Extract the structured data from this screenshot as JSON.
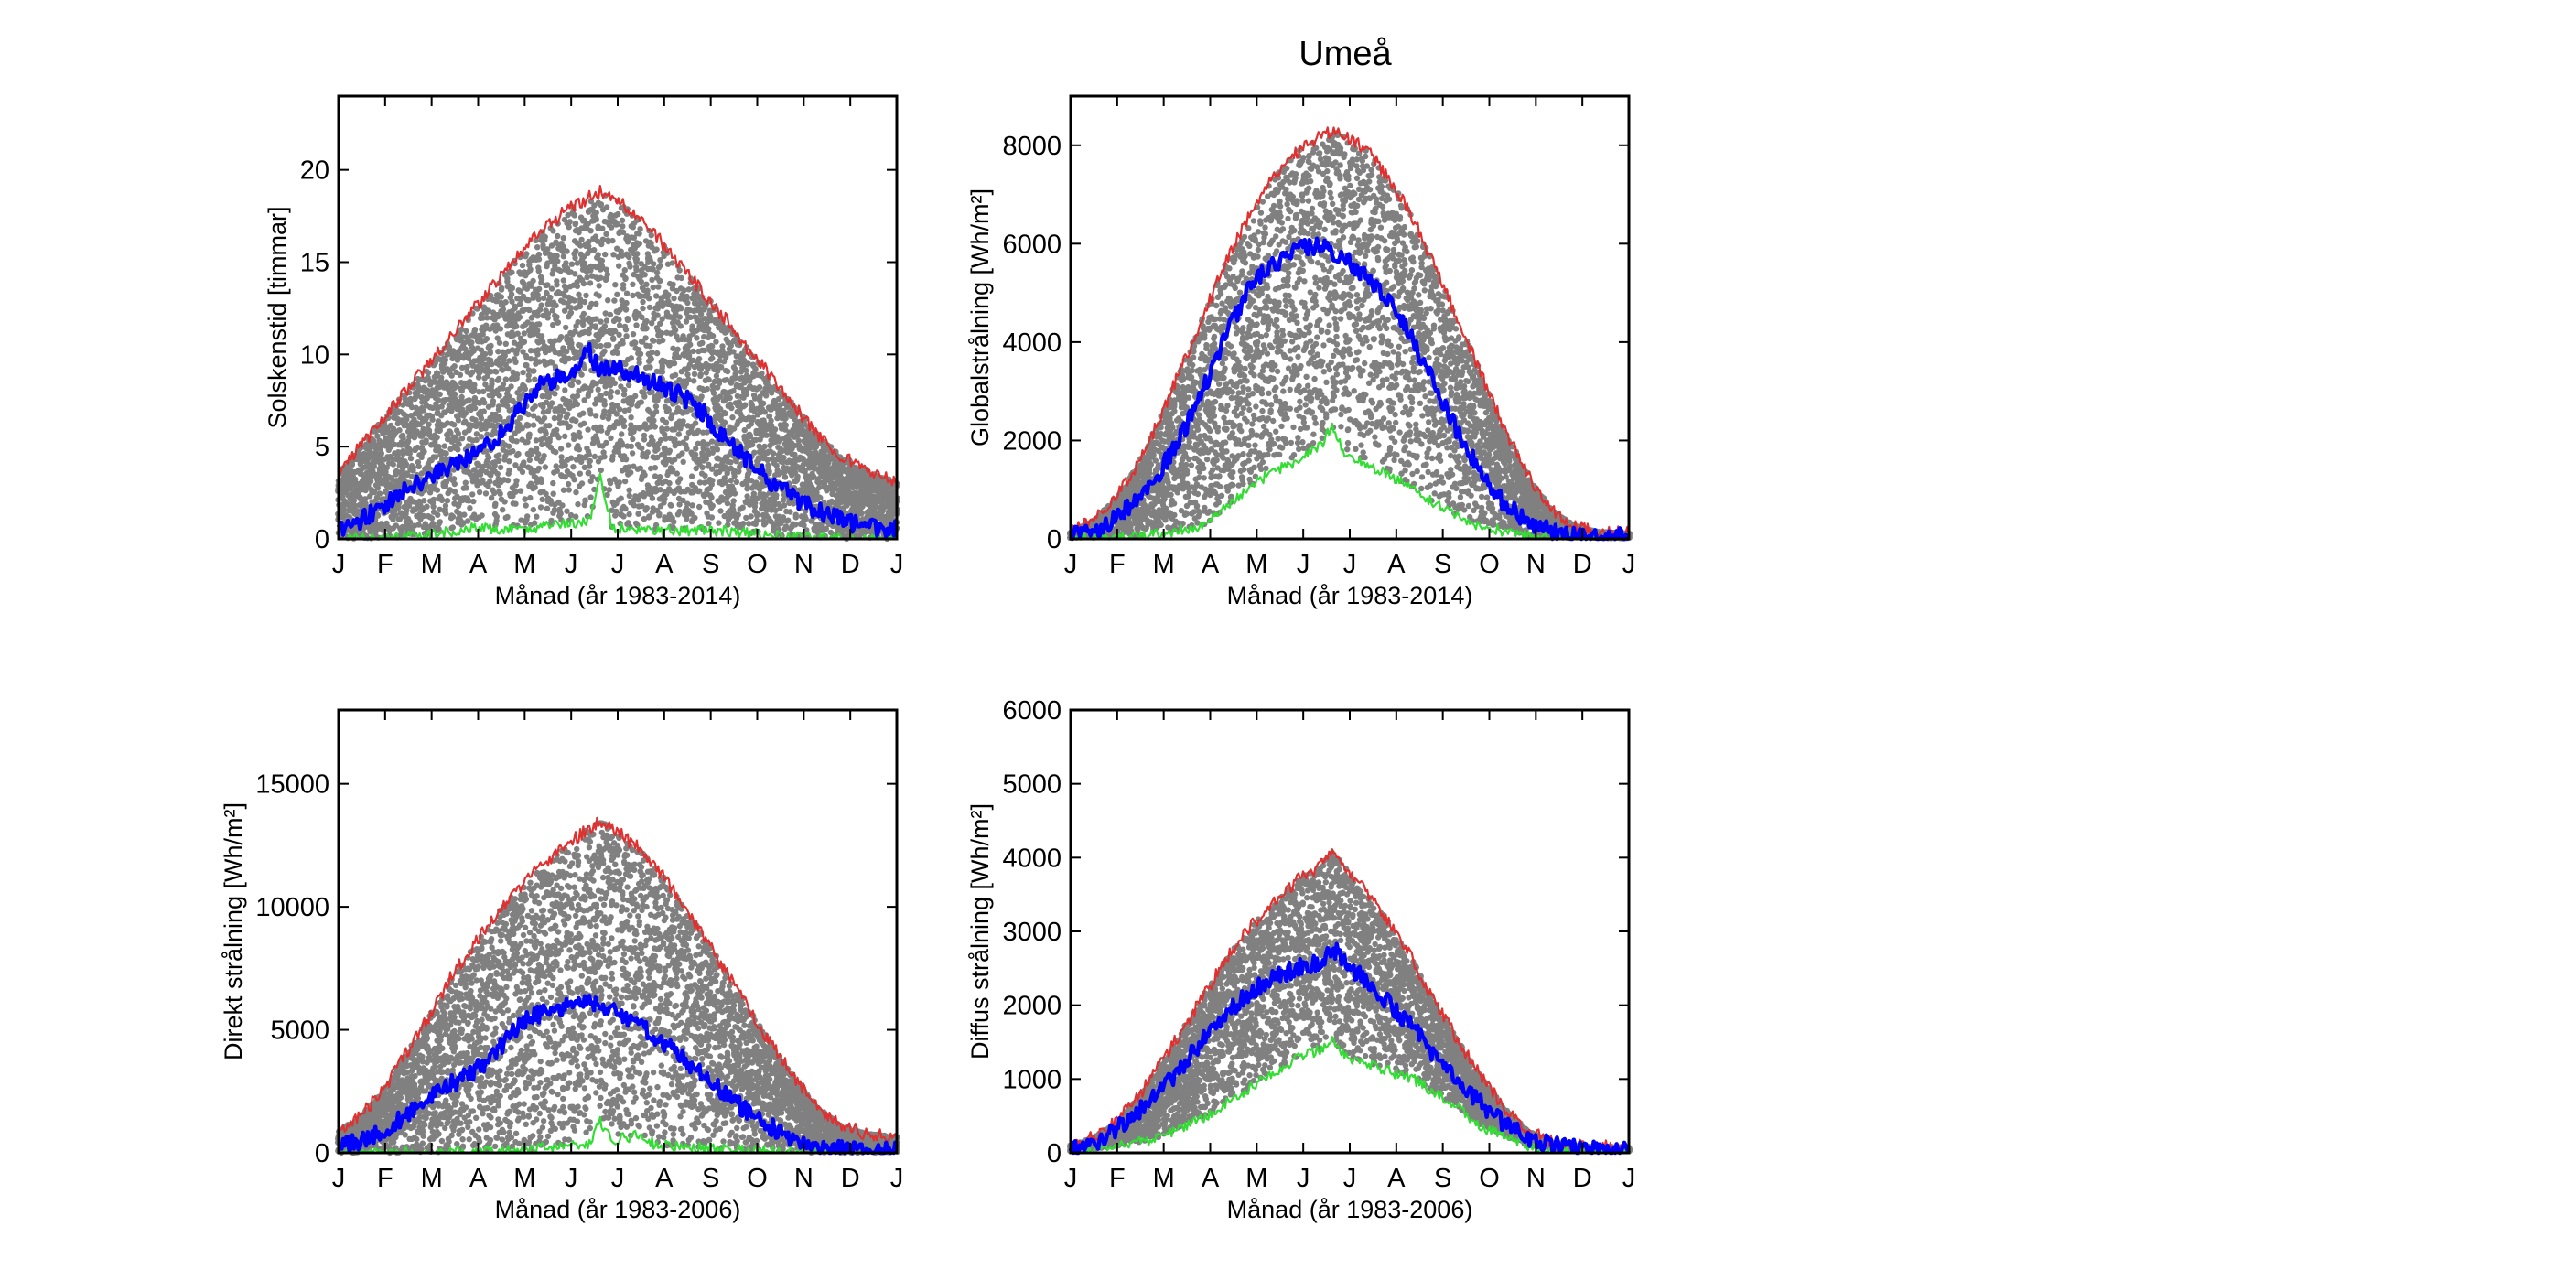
{
  "figure": {
    "title": "Umeå",
    "colors": {
      "scatter": "#808080",
      "max_line": "#e03030",
      "mean_line": "#0000ff",
      "min_line": "#33dd33",
      "axes": "#000000"
    }
  },
  "chart_data": [
    {
      "type": "scatter",
      "ylabel": "Solskenstid [timmar]",
      "xlabel": "Månad (år 1983-2014)",
      "ylim": [
        0,
        24
      ],
      "yticks": [
        0,
        5,
        10,
        15,
        20
      ],
      "xticks": [
        "J",
        "F",
        "M",
        "A",
        "M",
        "J",
        "J",
        "A",
        "S",
        "O",
        "N",
        "D",
        "J"
      ],
      "grid": false,
      "series": [
        {
          "role": "max",
          "color": "#e03030",
          "x": [
            1,
            15,
            30,
            45,
            60,
            75,
            90,
            105,
            120,
            135,
            150,
            165,
            172,
            180,
            195,
            210,
            225,
            240,
            255,
            270,
            285,
            300,
            315,
            330,
            345,
            360,
            366
          ],
          "y": [
            3.5,
            5,
            6.5,
            8,
            9.5,
            11,
            12.5,
            14,
            15.5,
            16.8,
            17.8,
            18.5,
            18.8,
            18.5,
            17.6,
            16.3,
            14.8,
            13.3,
            11.8,
            10.2,
            8.7,
            7.1,
            5.6,
            4.5,
            3.8,
            3.3,
            3.2
          ]
        },
        {
          "role": "mean",
          "color": "#0000ff",
          "x": [
            1,
            15,
            30,
            45,
            60,
            75,
            90,
            105,
            120,
            135,
            150,
            165,
            172,
            180,
            195,
            210,
            225,
            240,
            255,
            270,
            285,
            300,
            315,
            330,
            345,
            360,
            366
          ],
          "y": [
            0.6,
            1.0,
            1.8,
            2.6,
            3.4,
            4.0,
            4.6,
            5.5,
            7.0,
            8.5,
            8.8,
            10.2,
            9.0,
            9.3,
            9.0,
            8.3,
            7.8,
            6.8,
            5.3,
            4.2,
            3.0,
            2.2,
            1.5,
            1.0,
            0.7,
            0.6,
            0.6
          ]
        },
        {
          "role": "min",
          "color": "#33dd33",
          "x": [
            1,
            30,
            60,
            90,
            120,
            150,
            165,
            172,
            180,
            210,
            240,
            270,
            300,
            330,
            366
          ],
          "y": [
            0,
            0,
            0.2,
            0.6,
            0.5,
            0.8,
            1.0,
            3.5,
            0.6,
            0.4,
            0.5,
            0.3,
            0.1,
            0,
            0
          ]
        },
        {
          "role": "scatter",
          "color": "#808080",
          "envelope_min": "min",
          "envelope_max": "max"
        }
      ]
    },
    {
      "type": "scatter",
      "ylabel": "Globalstrålning [Wh/m²]",
      "xlabel": "Månad (år 1983-2014)",
      "ylim": [
        0,
        9000
      ],
      "yticks": [
        0,
        2000,
        4000,
        6000,
        8000
      ],
      "xticks": [
        "J",
        "F",
        "M",
        "A",
        "M",
        "J",
        "J",
        "A",
        "S",
        "O",
        "N",
        "D",
        "J"
      ],
      "grid": false,
      "series": [
        {
          "role": "max",
          "color": "#e03030",
          "x": [
            1,
            15,
            30,
            45,
            60,
            75,
            90,
            105,
            120,
            135,
            150,
            165,
            172,
            180,
            195,
            210,
            225,
            240,
            255,
            270,
            285,
            300,
            315,
            330,
            345,
            360,
            366
          ],
          "y": [
            150,
            350,
            800,
            1500,
            2500,
            3600,
            4700,
            5800,
            6700,
            7400,
            7900,
            8200,
            8300,
            8200,
            7900,
            7300,
            6500,
            5500,
            4400,
            3300,
            2200,
            1300,
            600,
            280,
            150,
            120,
            120
          ]
        },
        {
          "role": "mean",
          "color": "#0000ff",
          "x": [
            1,
            15,
            30,
            45,
            60,
            75,
            90,
            105,
            120,
            135,
            150,
            165,
            172,
            180,
            195,
            210,
            225,
            240,
            255,
            270,
            285,
            300,
            315,
            330,
            345,
            360,
            366
          ],
          "y": [
            60,
            150,
            400,
            800,
            1400,
            2200,
            3200,
            4300,
            5200,
            5600,
            5900,
            6000,
            5800,
            5700,
            5300,
            4800,
            4000,
            3100,
            2100,
            1300,
            700,
            350,
            150,
            80,
            50,
            40,
            40
          ]
        },
        {
          "role": "min",
          "color": "#33dd33",
          "x": [
            1,
            30,
            60,
            90,
            105,
            120,
            135,
            150,
            165,
            172,
            180,
            195,
            210,
            225,
            240,
            255,
            270,
            300,
            330,
            366
          ],
          "y": [
            10,
            30,
            100,
            300,
            700,
            1100,
            1400,
            1600,
            1900,
            2300,
            1700,
            1500,
            1300,
            1000,
            700,
            450,
            250,
            60,
            15,
            10
          ]
        },
        {
          "role": "scatter",
          "color": "#808080",
          "envelope_min": "min",
          "envelope_max": "max"
        }
      ]
    },
    {
      "type": "scatter",
      "ylabel": "Direkt strålning [Wh/m²]",
      "xlabel": "Månad (år 1983-2006)",
      "ylim": [
        0,
        18000
      ],
      "yticks": [
        0,
        5000,
        10000,
        15000
      ],
      "xticks": [
        "J",
        "F",
        "M",
        "A",
        "M",
        "J",
        "J",
        "A",
        "S",
        "O",
        "N",
        "D",
        "J"
      ],
      "grid": false,
      "series": [
        {
          "role": "max",
          "color": "#e03030",
          "x": [
            1,
            15,
            30,
            45,
            60,
            75,
            90,
            105,
            120,
            135,
            150,
            165,
            172,
            180,
            195,
            210,
            225,
            240,
            255,
            270,
            285,
            300,
            315,
            330,
            345,
            360,
            366
          ],
          "y": [
            900,
            1500,
            2500,
            4000,
            5500,
            7200,
            8500,
            9800,
            10800,
            11800,
            12500,
            13200,
            13500,
            13200,
            12500,
            11500,
            10200,
            8800,
            7300,
            5800,
            4300,
            3000,
            1800,
            1100,
            800,
            700,
            700
          ]
        },
        {
          "role": "mean",
          "color": "#0000ff",
          "x": [
            1,
            15,
            30,
            45,
            60,
            75,
            90,
            105,
            120,
            135,
            150,
            165,
            172,
            180,
            195,
            210,
            225,
            240,
            255,
            270,
            285,
            300,
            315,
            330,
            345,
            360,
            366
          ],
          "y": [
            200,
            500,
            900,
            1500,
            2200,
            2800,
            3300,
            4200,
            5300,
            5700,
            6000,
            6200,
            6000,
            5900,
            5300,
            4600,
            3900,
            3100,
            2300,
            1600,
            1000,
            500,
            250,
            150,
            100,
            100,
            100
          ]
        },
        {
          "role": "min",
          "color": "#33dd33",
          "x": [
            1,
            60,
            120,
            150,
            165,
            172,
            180,
            195,
            210,
            240,
            270,
            300,
            366
          ],
          "y": [
            0,
            0,
            100,
            300,
            400,
            1300,
            500,
            700,
            300,
            200,
            100,
            0,
            0
          ]
        },
        {
          "role": "scatter",
          "color": "#808080",
          "envelope_min": "min",
          "envelope_max": "max"
        }
      ]
    },
    {
      "type": "scatter",
      "ylabel": "Diffus strålning [Wh/m²]",
      "xlabel": "Månad (år 1983-2006)",
      "ylim": [
        0,
        6000
      ],
      "yticks": [
        0,
        1000,
        2000,
        3000,
        4000,
        5000,
        6000
      ],
      "xticks": [
        "J",
        "F",
        "M",
        "A",
        "M",
        "J",
        "J",
        "A",
        "S",
        "O",
        "N",
        "D",
        "J"
      ],
      "grid": false,
      "series": [
        {
          "role": "max",
          "color": "#e03030",
          "x": [
            1,
            15,
            30,
            45,
            60,
            75,
            90,
            105,
            120,
            135,
            150,
            165,
            172,
            180,
            195,
            210,
            225,
            240,
            255,
            270,
            285,
            300,
            315,
            330,
            345,
            360,
            366
          ],
          "y": [
            100,
            200,
            400,
            750,
            1200,
            1700,
            2200,
            2700,
            3100,
            3400,
            3700,
            3900,
            4100,
            3900,
            3500,
            3100,
            2600,
            2000,
            1500,
            1000,
            600,
            300,
            150,
            100,
            80,
            80,
            80
          ]
        },
        {
          "role": "mean",
          "color": "#0000ff",
          "x": [
            1,
            15,
            30,
            45,
            60,
            75,
            90,
            105,
            120,
            135,
            150,
            165,
            172,
            180,
            195,
            210,
            225,
            240,
            255,
            270,
            285,
            300,
            315,
            330,
            345,
            360,
            366
          ],
          "y": [
            60,
            120,
            300,
            550,
            850,
            1200,
            1600,
            1950,
            2200,
            2400,
            2500,
            2600,
            2800,
            2600,
            2300,
            2000,
            1700,
            1300,
            950,
            650,
            380,
            200,
            100,
            60,
            50,
            50,
            50
          ]
        },
        {
          "role": "min",
          "color": "#33dd33",
          "x": [
            1,
            30,
            60,
            90,
            120,
            135,
            150,
            165,
            172,
            180,
            195,
            210,
            225,
            240,
            255,
            270,
            300,
            330,
            366
          ],
          "y": [
            20,
            80,
            200,
            500,
            900,
            1100,
            1300,
            1400,
            1500,
            1300,
            1200,
            1100,
            1000,
            800,
            600,
            350,
            100,
            30,
            20
          ]
        },
        {
          "role": "scatter",
          "color": "#808080",
          "envelope_min": "min",
          "envelope_max": "max"
        }
      ]
    }
  ]
}
